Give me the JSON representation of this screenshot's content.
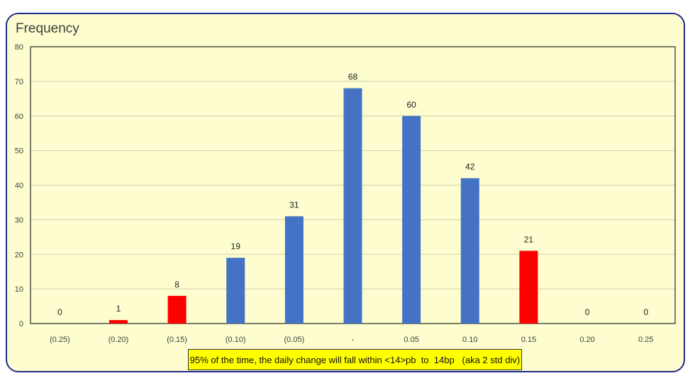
{
  "chart_data": {
    "type": "bar",
    "ylabel": "Frequency",
    "categories": [
      "(0.25)",
      "(0.20)",
      "(0.15)",
      "(0.10)",
      "(0.05)",
      "-",
      "0.05",
      "0.10",
      "0.15",
      "0.20",
      "0.25"
    ],
    "values": [
      0,
      1,
      8,
      19,
      31,
      68,
      60,
      42,
      21,
      0,
      0
    ],
    "highlighted": [
      false,
      true,
      true,
      false,
      false,
      false,
      false,
      false,
      true,
      false,
      false
    ],
    "ylim": [
      0,
      80
    ],
    "yticks": [
      0,
      10,
      20,
      30,
      40,
      50,
      60,
      70,
      80
    ],
    "grid": true,
    "colors": {
      "normal": "#4472c4",
      "highlight": "#ff0000",
      "background": "#fdfdcf",
      "border": "#1f2a8c",
      "annotation_bg": "#ffff00"
    },
    "annotation": "95% of the time, the daily change will fall within <14>pb  to  14bp   (aka 2 std div)"
  }
}
